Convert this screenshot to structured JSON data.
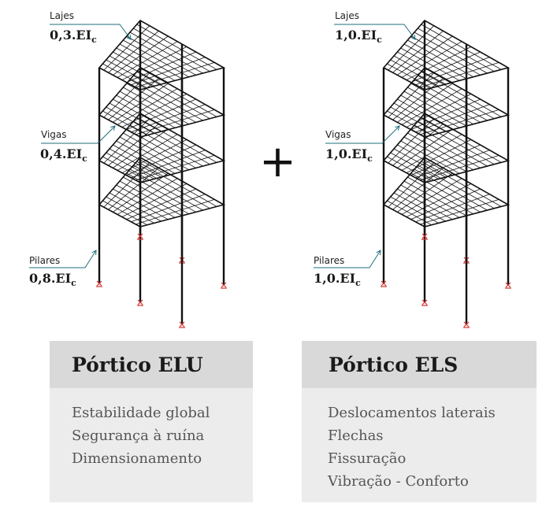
{
  "operator": "+",
  "frames": [
    {
      "title": "Pórtico ELU",
      "labels": {
        "lajes": {
          "name": "Lajes",
          "value": "0,3.EI",
          "sub": "c"
        },
        "vigas": {
          "name": "Vigas",
          "value": "0,4.EI",
          "sub": "c"
        },
        "pilares": {
          "name": "Pilares",
          "value": "0,8.EI",
          "sub": "c"
        }
      },
      "items": [
        "Estabilidade global",
        "Segurança à ruína",
        "Dimensionamento"
      ]
    },
    {
      "title": "Pórtico ELS",
      "labels": {
        "lajes": {
          "name": "Lajes",
          "value": "1,0.EI",
          "sub": "c"
        },
        "vigas": {
          "name": "Vigas",
          "value": "1,0.EI",
          "sub": "c"
        },
        "pilares": {
          "name": "Pilares",
          "value": "1,0.EI",
          "sub": "c"
        }
      },
      "items": [
        "Deslocamentos laterais",
        "Flechas",
        "Fissuração",
        "Vibração - Conforto"
      ]
    }
  ],
  "colors": {
    "structure": "#111111",
    "support": "#d0312d",
    "leader": "#1e6f7a",
    "card_header": "#d9d9d9",
    "card_body": "#ececec"
  }
}
